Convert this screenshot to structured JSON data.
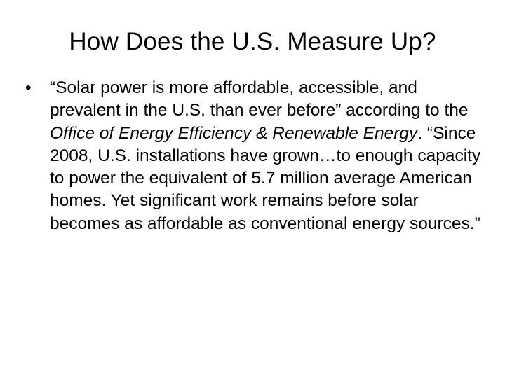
{
  "slide": {
    "title": "How Does the U.S. Measure Up?",
    "bullet": {
      "mark": "•",
      "text_part1": "“Solar power is more affordable, accessible, and prevalent in the U.S. than ever before” according to the ",
      "emphasis": "Office of Energy Efficiency & Renewable Energy",
      "text_part2": ".  “Since 2008, U.S. installations have grown…to enough capacity to power the equivalent of 5.7 million average American homes.  Yet significant work remains before solar becomes as affordable as conventional energy sources.”"
    }
  }
}
